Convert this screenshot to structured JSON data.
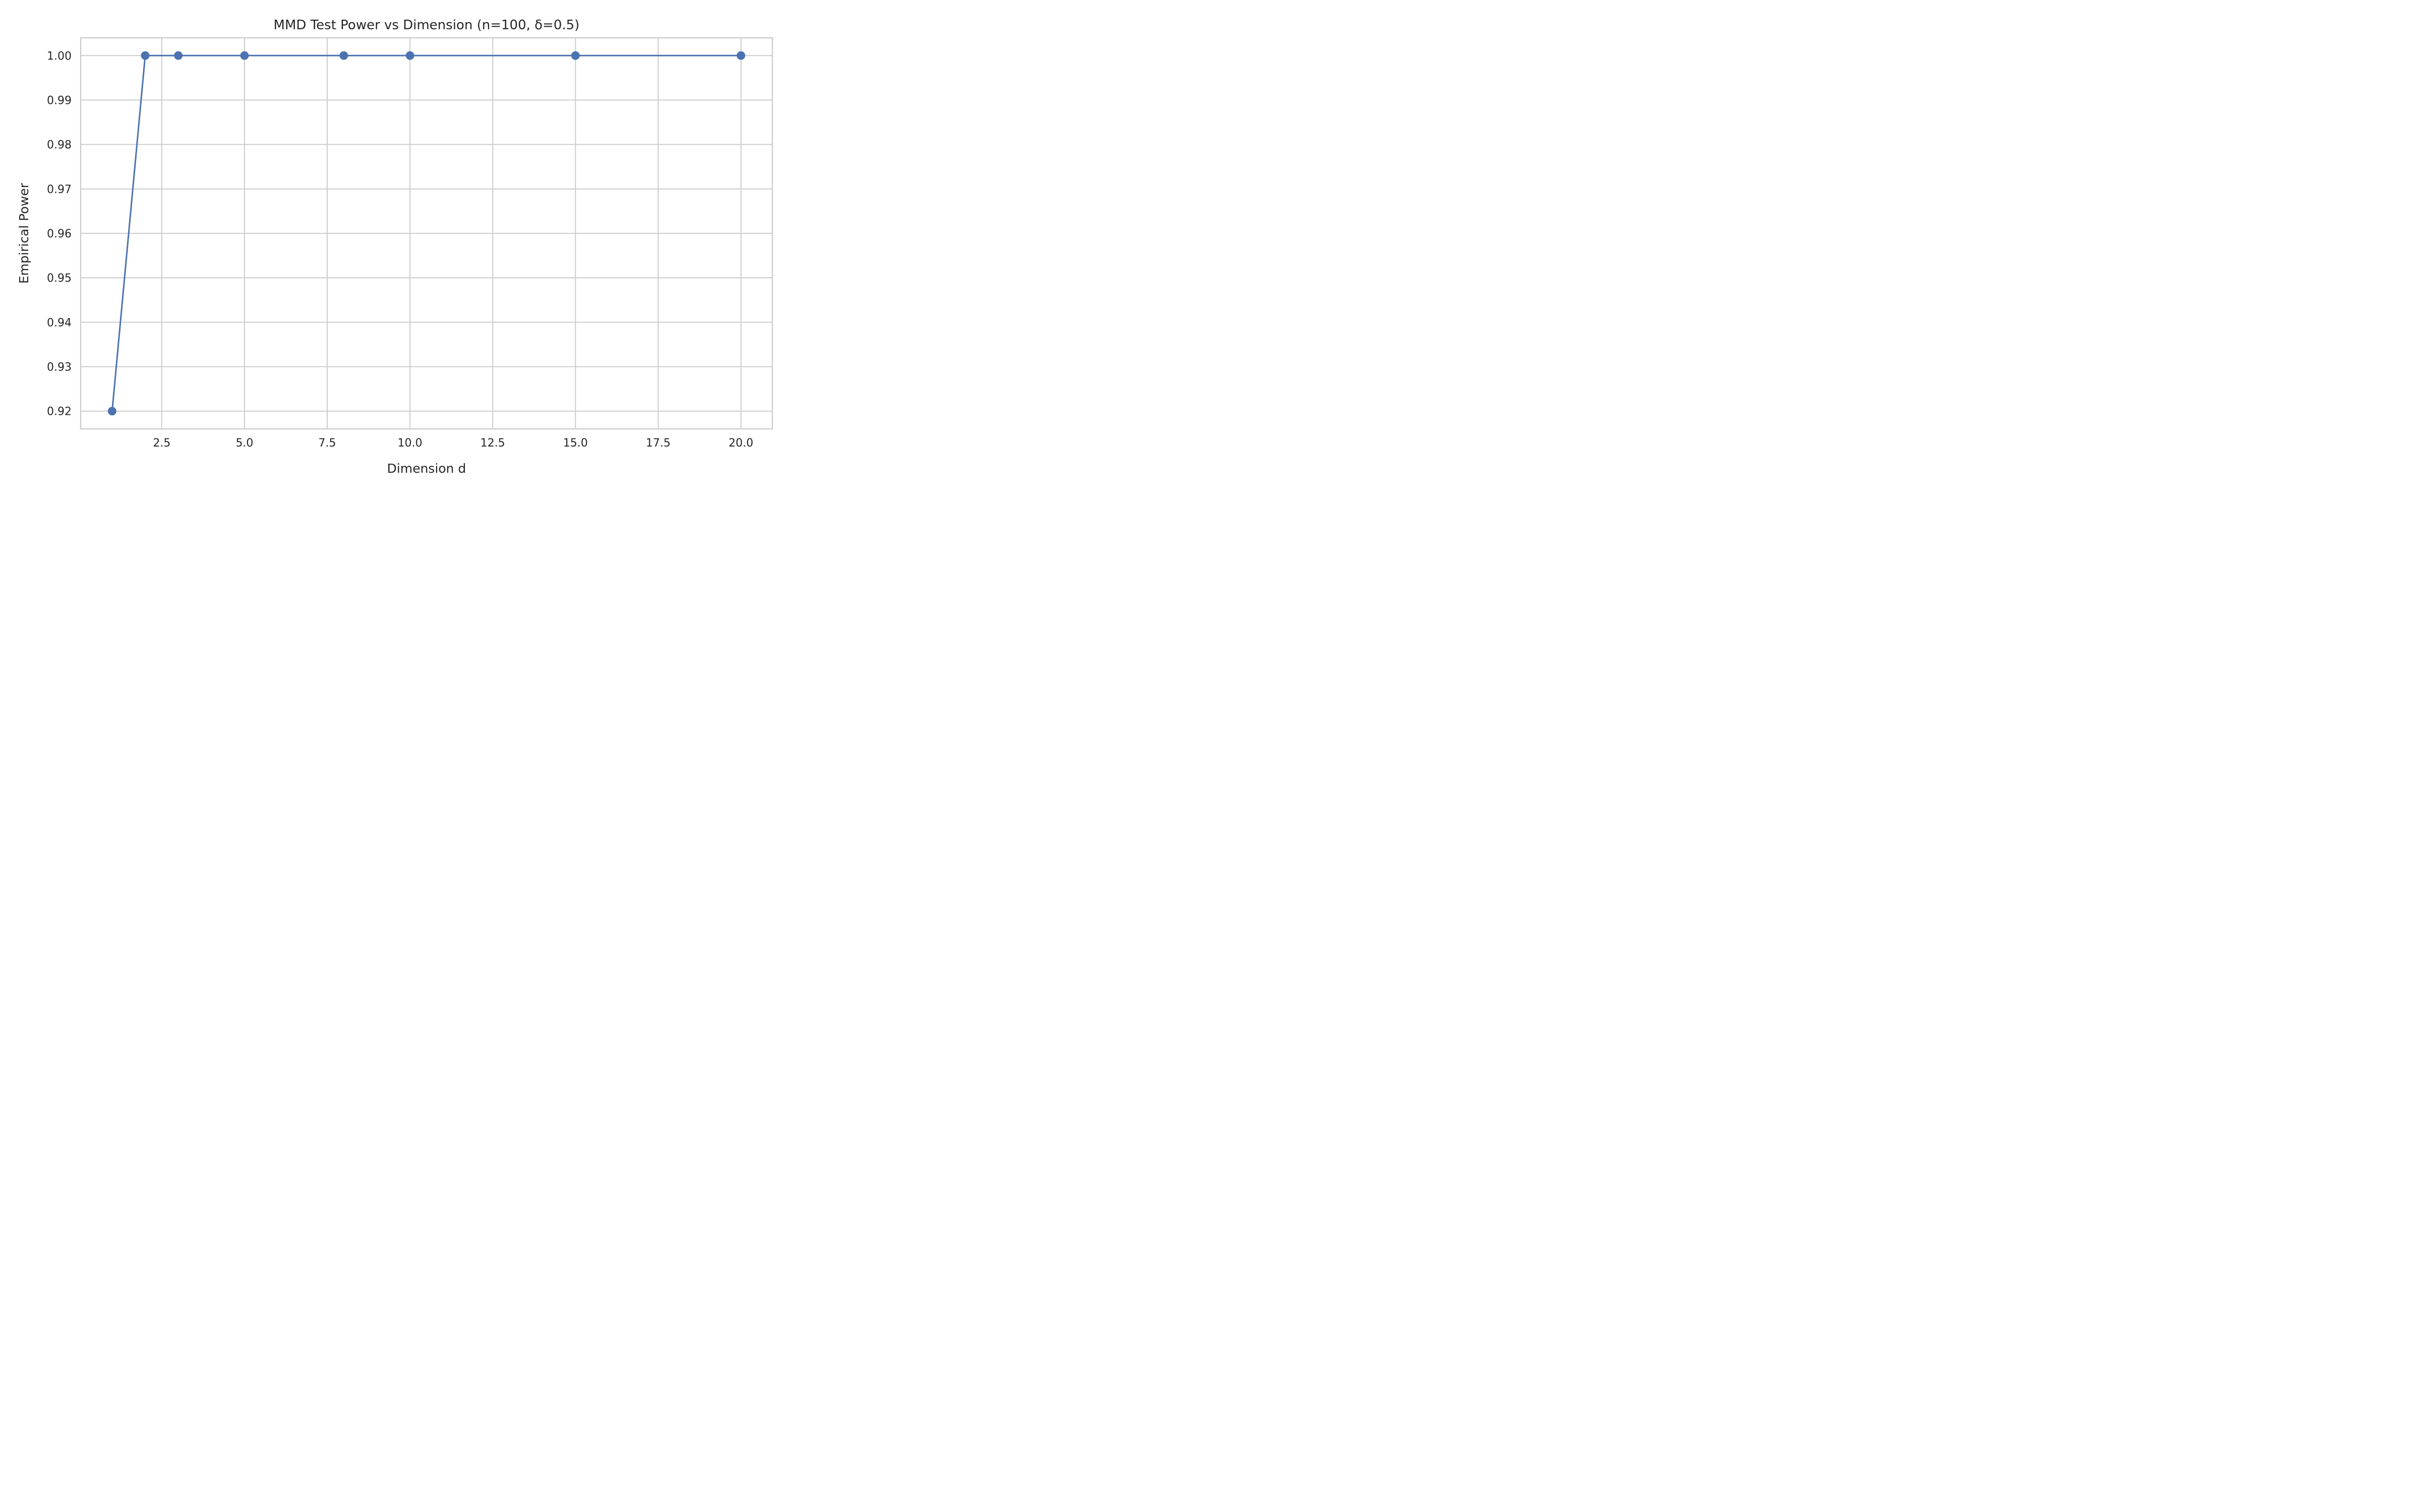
{
  "chart_data": {
    "type": "line",
    "title": "MMD Test Power vs Dimension (n=100, δ=0.5)",
    "xlabel": "Dimension d",
    "ylabel": "Empirical Power",
    "x": [
      1,
      2,
      3,
      5,
      8,
      10,
      15,
      20
    ],
    "series": [
      {
        "values": [
          0.92,
          1.0,
          1.0,
          1.0,
          1.0,
          1.0,
          1.0,
          1.0
        ],
        "color": "#4c72b0",
        "marker": "circle"
      }
    ],
    "xlim": [
      0.05,
      20.95
    ],
    "ylim": [
      0.916,
      1.004
    ],
    "xticks": [
      2.5,
      5.0,
      7.5,
      10.0,
      12.5,
      15.0,
      17.5,
      20.0
    ],
    "xtick_labels": [
      "2.5",
      "5.0",
      "7.5",
      "10.0",
      "12.5",
      "15.0",
      "17.5",
      "20.0"
    ],
    "yticks": [
      0.92,
      0.93,
      0.94,
      0.95,
      0.96,
      0.97,
      0.98,
      0.99,
      1.0
    ],
    "ytick_labels": [
      "0.92",
      "0.93",
      "0.94",
      "0.95",
      "0.96",
      "0.97",
      "0.98",
      "0.99",
      "1.00"
    ],
    "grid": true,
    "legend": "none"
  }
}
